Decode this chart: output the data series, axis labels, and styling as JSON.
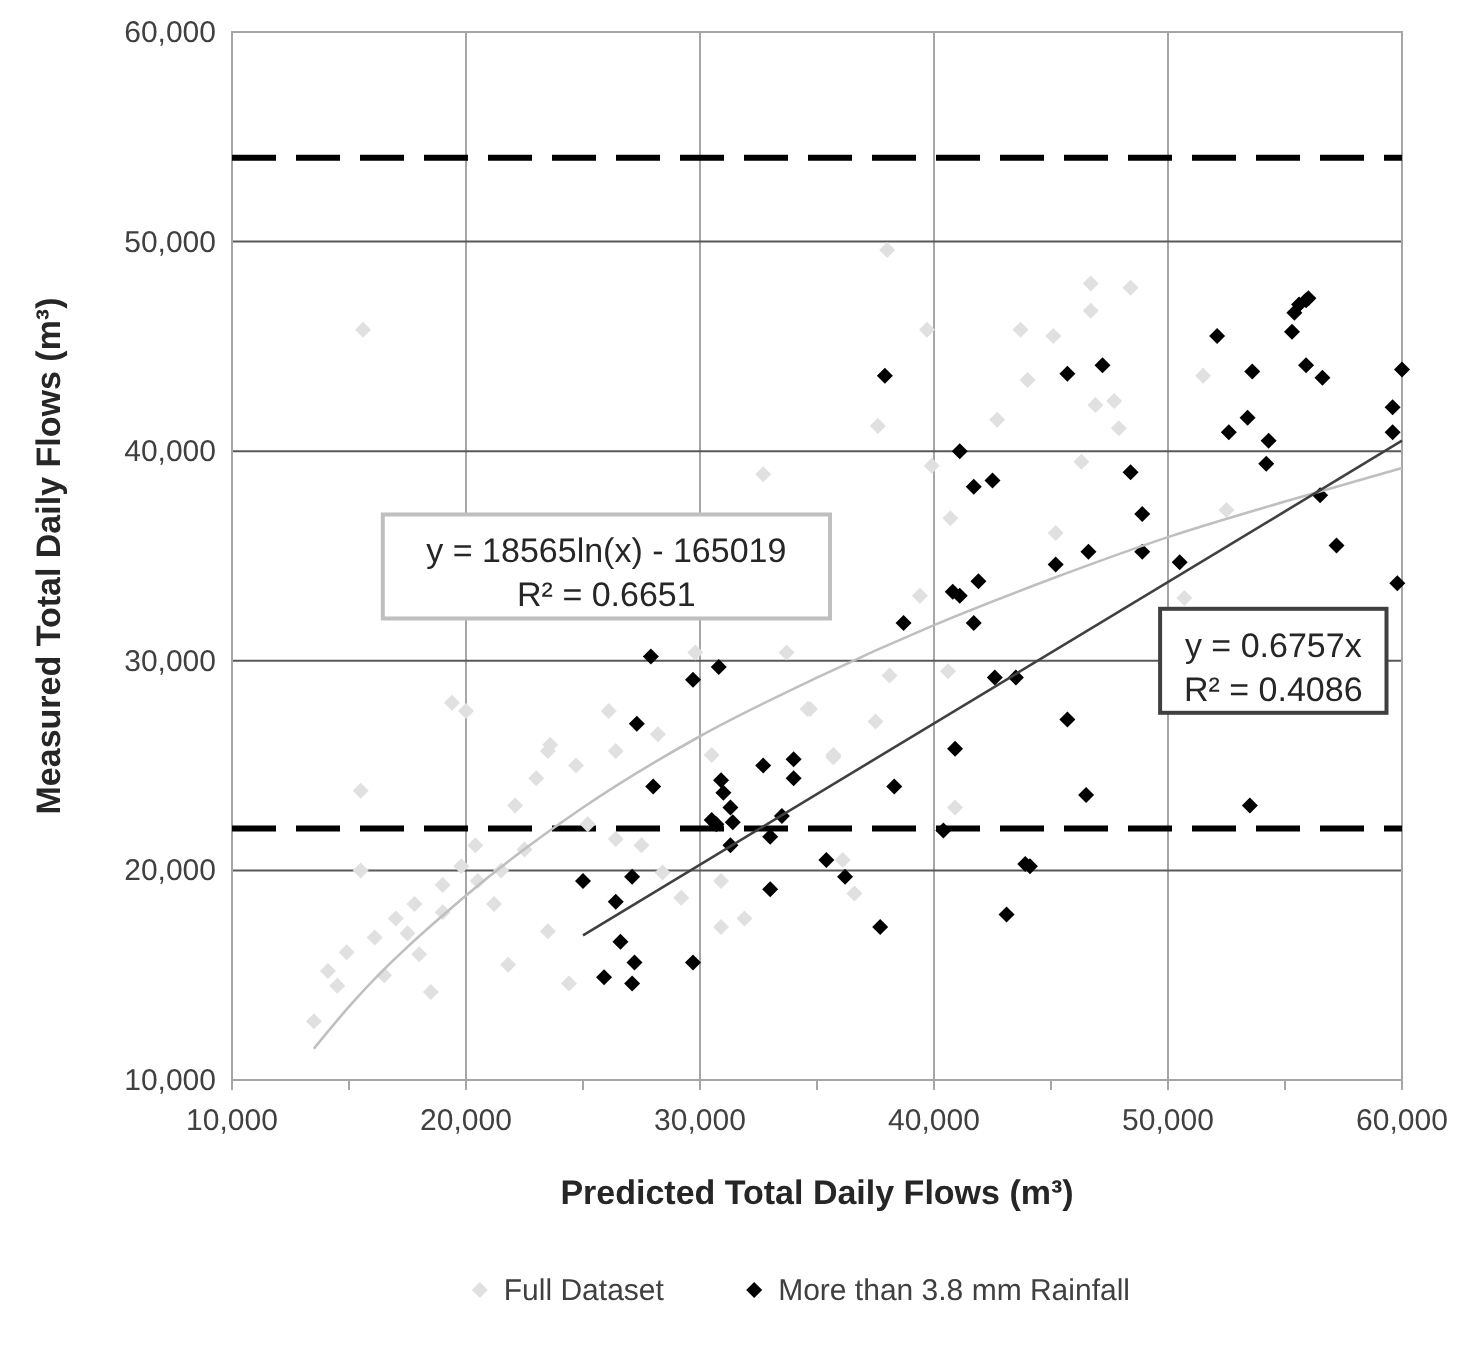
{
  "chart_data": {
    "type": "scatter",
    "xlabel": "Predicted Total Daily Flows (m³)",
    "ylabel": "Measured Total Daily Flows (m³)",
    "xlim": [
      10000,
      60000
    ],
    "xticks": [
      {
        "value": 10000,
        "label": "10,000"
      },
      {
        "value": 15000,
        "label": null
      },
      {
        "value": 20000,
        "label": "20,000"
      },
      {
        "value": 25000,
        "label": null
      },
      {
        "value": 30000,
        "label": "30,000"
      },
      {
        "value": 35000,
        "label": null
      },
      {
        "value": 40000,
        "label": "40,000"
      },
      {
        "value": 45000,
        "label": null
      },
      {
        "value": 50000,
        "label": "50,000"
      },
      {
        "value": 55000,
        "label": null
      },
      {
        "value": 60000,
        "label": "60,000"
      }
    ],
    "ylim": [
      10000,
      60000
    ],
    "yticks": [
      {
        "value": 10000,
        "label": "10,000"
      },
      {
        "value": 20000,
        "label": "20,000"
      },
      {
        "value": 30000,
        "label": "30,000"
      },
      {
        "value": 40000,
        "label": "40,000"
      },
      {
        "value": 50000,
        "label": "50,000"
      },
      {
        "value": 60000,
        "label": "60,000"
      }
    ],
    "grid": true,
    "legend": "bottom",
    "marker": "diamond",
    "series": [
      {
        "name": "Full Dataset",
        "color": "#e0e0e0",
        "x": [
          15500,
          13500,
          14100,
          14900,
          16100,
          17000,
          17800,
          18500,
          19000,
          19800,
          20400,
          21200,
          21800,
          22100,
          23000,
          23500,
          24400,
          24700,
          25200,
          26400,
          27500,
          28400,
          29200,
          30900,
          31900,
          30900,
          23500,
          26400,
          15600,
          32700,
          33700,
          26100,
          23600,
          19400,
          20000,
          34700,
          29800,
          28200,
          30500,
          38000,
          39700,
          46700,
          48400,
          43700,
          45100,
          46700,
          44000,
          46900,
          47700,
          47900,
          37600,
          42700,
          39900,
          51500,
          46300,
          52500,
          40700,
          45200,
          50700,
          39400,
          38100,
          34600,
          35700,
          37500,
          40600,
          35700,
          36100,
          36600,
          40900,
          15500,
          14500,
          16500,
          17500,
          18000,
          19000,
          20500,
          21500,
          22500
        ],
        "values": [
          23800,
          12800,
          15200,
          16100,
          16800,
          17700,
          18400,
          14200,
          19300,
          20200,
          21200,
          18400,
          15500,
          23100,
          24400,
          17100,
          14600,
          25000,
          22200,
          21500,
          21200,
          19900,
          18700,
          17300,
          17700,
          19500,
          25700,
          25700,
          45800,
          38900,
          30400,
          27600,
          26000,
          28000,
          27600,
          27700,
          30400,
          26500,
          25500,
          49600,
          45800,
          48000,
          47800,
          45800,
          45500,
          46700,
          43400,
          42200,
          42400,
          41100,
          41200,
          41500,
          39300,
          43600,
          39500,
          37200,
          36800,
          36100,
          33000,
          33100,
          29300,
          27700,
          25500,
          27100,
          29500,
          25400,
          20500,
          18900,
          23000,
          20000,
          14500,
          15000,
          17000,
          16000,
          18000,
          19500,
          20000,
          21000
        ]
      },
      {
        "name": "More than 3.8 mm Rainfall",
        "color": "#000000",
        "x": [
          27900,
          29700,
          30800,
          27300,
          32700,
          34000,
          34000,
          30900,
          37900,
          45700,
          47200,
          52100,
          53600,
          55300,
          55400,
          55600,
          55900,
          56000,
          55900,
          56600,
          60000,
          59600,
          59600,
          52600,
          53400,
          54300,
          54200,
          41100,
          41700,
          42500,
          48400,
          48900,
          48900,
          46600,
          45200,
          50500,
          56500,
          57200,
          59800,
          40800,
          41100,
          41900,
          38700,
          41700,
          42600,
          43500,
          45700,
          40900,
          28000,
          31000,
          31300,
          30500,
          30700,
          31400,
          31300,
          33500,
          33000,
          33000,
          35400,
          36200,
          25000,
          27100,
          26400,
          26600,
          27200,
          25900,
          27100,
          29700,
          38300,
          37700,
          40400,
          43100,
          43900,
          44100,
          46500,
          53500
        ],
        "values": [
          30200,
          29100,
          29700,
          27000,
          25000,
          25300,
          24400,
          24300,
          43600,
          43700,
          44100,
          45500,
          43800,
          45700,
          46600,
          47000,
          47200,
          47300,
          44100,
          43500,
          43900,
          42100,
          40900,
          40900,
          41600,
          40500,
          39400,
          40000,
          38300,
          38600,
          39000,
          37000,
          35200,
          35200,
          34600,
          34700,
          37900,
          35500,
          33700,
          33300,
          33100,
          33800,
          31800,
          31800,
          29200,
          29200,
          27200,
          25800,
          24000,
          23700,
          23000,
          22400,
          22200,
          22300,
          21200,
          22600,
          21600,
          19100,
          20500,
          19700,
          19500,
          19700,
          18500,
          16600,
          15600,
          14900,
          14600,
          15600,
          24000,
          17300,
          21900,
          17900,
          20300,
          20200,
          23600,
          23100
        ]
      },
      {
        "type": "line",
        "color": "#bfbfbf",
        "marker": "none",
        "x": [
          13500,
          15000,
          20000,
          25000,
          30000,
          35000,
          40000,
          45000,
          50000,
          55000,
          60000
        ],
        "values": [
          11500,
          13500,
          18800,
          23000,
          26400,
          29200,
          31700,
          33900,
          35900,
          37600,
          39200
        ]
      },
      {
        "type": "line",
        "color": "#404040",
        "marker": "none",
        "x": [
          25000,
          60000
        ],
        "values": [
          16900,
          40500
        ]
      }
    ],
    "annotations": [
      "y = 18565ln(x) - 165019\nR² = 0.6651",
      "y = 0.6757x\nR² = 0.4086"
    ],
    "ref_lines": [
      {
        "axis": "y",
        "value": 54000,
        "color": "#000000",
        "line_style": "dashed"
      },
      {
        "axis": "y",
        "value": 22000,
        "color": "#000000",
        "line_style": "dashed"
      }
    ]
  }
}
